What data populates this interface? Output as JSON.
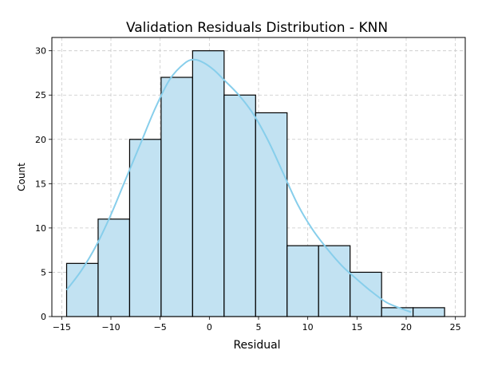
{
  "chart_data": {
    "type": "bar",
    "title": "Validation Residuals Distribution - KNN",
    "xlabel": "Residual",
    "ylabel": "Count",
    "xlim": [
      -16,
      26
    ],
    "ylim": [
      0,
      31.5
    ],
    "xticks": [
      -15,
      -10,
      -5,
      0,
      5,
      10,
      15,
      20,
      25
    ],
    "yticks": [
      0,
      5,
      10,
      15,
      20,
      25,
      30
    ],
    "grid": true,
    "bins": [
      {
        "x0": -14.5,
        "x1": -11.3,
        "value": 6
      },
      {
        "x0": -11.3,
        "x1": -8.1,
        "value": 11
      },
      {
        "x0": -8.1,
        "x1": -4.9,
        "value": 20
      },
      {
        "x0": -4.9,
        "x1": -1.7,
        "value": 27
      },
      {
        "x0": -1.7,
        "x1": 1.5,
        "value": 30
      },
      {
        "x0": 1.5,
        "x1": 4.7,
        "value": 25
      },
      {
        "x0": 4.7,
        "x1": 7.9,
        "value": 23
      },
      {
        "x0": 7.9,
        "x1": 11.1,
        "value": 8
      },
      {
        "x0": 11.1,
        "x1": 14.3,
        "value": 8
      },
      {
        "x0": 14.3,
        "x1": 17.5,
        "value": 5
      },
      {
        "x0": 17.5,
        "x1": 20.7,
        "value": 1
      },
      {
        "x0": 20.7,
        "x1": 23.9,
        "value": 1
      }
    ],
    "kde": {
      "x": [
        -14.5,
        -13,
        -11.5,
        -10,
        -8.5,
        -7,
        -5.5,
        -4,
        -2.5,
        -1.5,
        -0.5,
        0.5,
        1.5,
        3,
        4.5,
        6,
        7.5,
        9,
        10.5,
        12,
        13.5,
        15,
        16.5,
        18,
        19.5,
        20.5
      ],
      "y": [
        3.0,
        5.2,
        8.0,
        11.5,
        15.5,
        19.5,
        23.5,
        26.8,
        28.6,
        29.0,
        28.6,
        27.8,
        26.7,
        25.0,
        22.8,
        19.8,
        16.2,
        12.6,
        9.8,
        7.6,
        5.7,
        4.2,
        2.8,
        1.6,
        0.9,
        0.5
      ]
    },
    "colors": {
      "bar_fill": "#c2e2f2",
      "bar_edge": "#000000",
      "kde": "#87ceeb"
    }
  }
}
